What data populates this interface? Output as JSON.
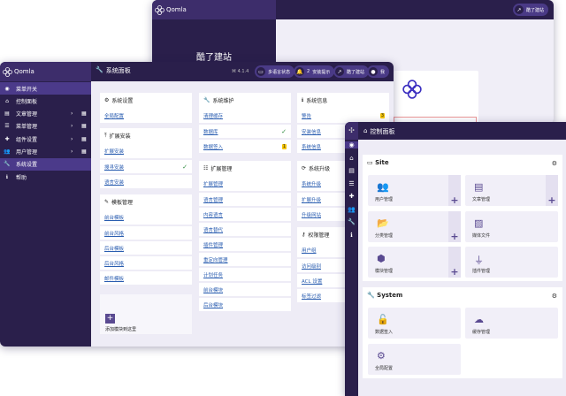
{
  "colors": {
    "dark": "#2a1f4b",
    "accent": "#4b3a8a",
    "link": "#2a5db0",
    "badge": "#f5c400"
  },
  "back_window": {
    "logo": "Qomla",
    "site_title": "酷了建站",
    "header_button": "酷了建站"
  },
  "main_window": {
    "logo": "Qomla",
    "header": {
      "title": "系统面板",
      "version": "4.1.4",
      "multilang": "多语言状态",
      "notices_count": "2",
      "notices": "安装提示",
      "site": "酷了建站",
      "user": "我"
    },
    "sidebar": [
      {
        "label": "菜单开关",
        "icon": "toggle-icon",
        "active": true
      },
      {
        "label": "控制面板",
        "icon": "home-icon"
      },
      {
        "label": "文章管理",
        "icon": "file-icon",
        "sub": true
      },
      {
        "label": "菜单管理",
        "icon": "list-icon",
        "sub": true
      },
      {
        "label": "组件设置",
        "icon": "puzzle-icon",
        "sub": true
      },
      {
        "label": "用户管理",
        "icon": "users-icon",
        "sub": true
      },
      {
        "label": "系统设置",
        "icon": "wrench-icon",
        "active": true
      },
      {
        "label": "帮助",
        "icon": "info-icon"
      }
    ],
    "cards": [
      {
        "title": "系统设置",
        "icon": "gear-icon",
        "items": [
          {
            "label": "全局配置"
          }
        ]
      },
      {
        "title": "扩展安装",
        "icon": "upload-icon",
        "items": [
          {
            "label": "扩展安装"
          },
          {
            "label": "搜寻安装",
            "check": true
          },
          {
            "label": "语言安装"
          }
        ]
      },
      {
        "title": "模板管理",
        "icon": "brush-icon",
        "items": [
          {
            "label": "前台模板"
          },
          {
            "label": "前台风格"
          },
          {
            "label": "后台模板"
          },
          {
            "label": "后台风格"
          },
          {
            "label": "邮件模板"
          }
        ]
      },
      {
        "title": "系统维护",
        "icon": "wrench-icon",
        "items": [
          {
            "label": "清理缓存"
          },
          {
            "label": "数据库",
            "check": true
          },
          {
            "label": "数据签入",
            "badge": "1"
          }
        ]
      },
      {
        "title": "扩展管理",
        "icon": "extensions-icon",
        "items": [
          {
            "label": "扩展管理"
          },
          {
            "label": "语言管理"
          },
          {
            "label": "内容语言"
          },
          {
            "label": "语言替代"
          },
          {
            "label": "插件管理"
          },
          {
            "label": "重定向管理"
          },
          {
            "label": "计划任务"
          },
          {
            "label": "前台模块"
          },
          {
            "label": "后台模块"
          }
        ]
      },
      {
        "title": "系统信息",
        "icon": "info-icon",
        "items": [
          {
            "label": "警告",
            "badge": "3"
          },
          {
            "label": "安装信息"
          },
          {
            "label": "系统信息"
          }
        ]
      },
      {
        "title": "系统升级",
        "icon": "sync-icon",
        "items": [
          {
            "label": "系统升级"
          },
          {
            "label": "扩展升级"
          },
          {
            "label": "升级网站"
          }
        ]
      },
      {
        "title": "权限管理",
        "icon": "key-icon",
        "items": [
          {
            "label": "用户组"
          },
          {
            "label": "访问级别"
          },
          {
            "label": "ACL 设置"
          },
          {
            "label": "标签过滤"
          }
        ]
      }
    ],
    "add_module": "添加模块到这里"
  },
  "dashboard_window": {
    "title": "控制面板",
    "site": {
      "title": "Site",
      "tiles": [
        {
          "label": "用户管理",
          "icon": "users-icon",
          "plus": true
        },
        {
          "label": "文章管理",
          "icon": "file-icon",
          "plus": true
        },
        {
          "label": "分类管理",
          "icon": "folder-icon",
          "plus": true
        },
        {
          "label": "媒体文件",
          "icon": "image-icon"
        },
        {
          "label": "模块管理",
          "icon": "cube-icon",
          "plus": true
        },
        {
          "label": "插件管理",
          "icon": "plug-icon"
        }
      ]
    },
    "system": {
      "title": "System",
      "tiles": [
        {
          "label": "数据签入",
          "icon": "unlock-icon"
        },
        {
          "label": "缓存管理",
          "icon": "cloud-icon"
        },
        {
          "label": "全局配置",
          "icon": "gear-icon"
        }
      ]
    }
  }
}
